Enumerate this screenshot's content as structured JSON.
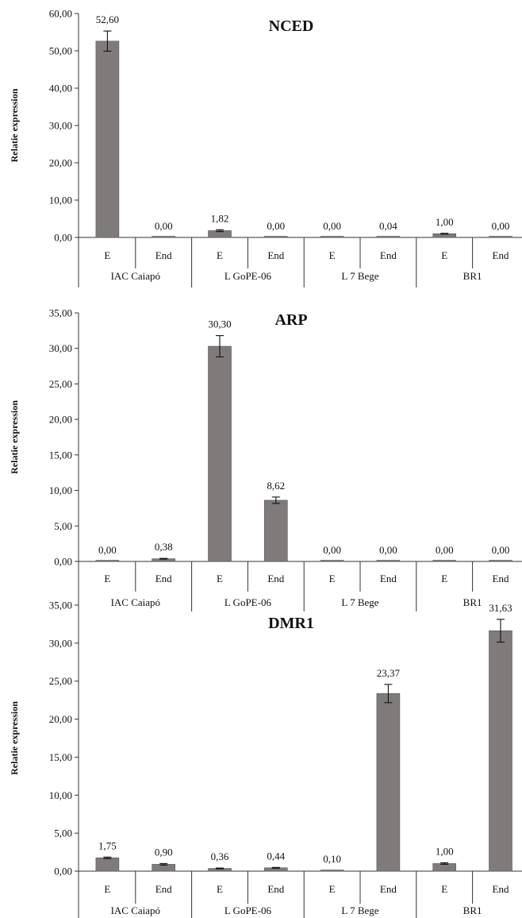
{
  "groups": [
    "IAC Caiapó",
    "L GoPE-06",
    "L 7 Bege",
    "BR1"
  ],
  "bar_color": "#7f7b7b",
  "chart_data": [
    {
      "type": "bar",
      "title": "NCED",
      "ylabel": "Relatie expression",
      "ylim": [
        0,
        60
      ],
      "yticks": [
        "0,00",
        "10,00",
        "20,00",
        "30,00",
        "40,00",
        "50,00",
        "60,00"
      ],
      "categories": [
        "E",
        "End",
        "E",
        "End",
        "E",
        "End",
        "E",
        "End"
      ],
      "groups": [
        "IAC Caiapó",
        "L GoPE-06",
        "L 7 Bege",
        "BR1"
      ],
      "values": [
        52.6,
        0.0,
        1.82,
        0.0,
        0.0,
        0.04,
        1.0,
        0.0
      ],
      "errors": [
        2.7,
        0.0,
        0.25,
        0.0,
        0.0,
        0.0,
        0.1,
        0.0
      ],
      "labels": [
        "52,60",
        "0,00",
        "1,82",
        "0,00",
        "0,00",
        "0,04",
        "1,00",
        "0,00"
      ],
      "grid": false,
      "legend": "none"
    },
    {
      "type": "bar",
      "title": "ARP",
      "ylabel": "Relatie expression",
      "ylim": [
        0,
        35
      ],
      "yticks": [
        "0,00",
        "5,00",
        "10,00",
        "15,00",
        "20,00",
        "25,00",
        "30,00",
        "35,00"
      ],
      "categories": [
        "E",
        "End",
        "E",
        "End",
        "E",
        "End",
        "E",
        "End"
      ],
      "groups": [
        "IAC Caiapó",
        "L GoPE-06",
        "L 7 Bege",
        "BR1"
      ],
      "values": [
        0.0,
        0.38,
        30.3,
        8.62,
        0.0,
        0.0,
        0.0,
        0.0
      ],
      "errors": [
        0.0,
        0.05,
        1.5,
        0.45,
        0.0,
        0.0,
        0.0,
        0.0
      ],
      "labels": [
        "0,00",
        "0,38",
        "30,30",
        "8,62",
        "0,00",
        "0,00",
        "0,00",
        "0,00"
      ],
      "grid": false,
      "legend": "none"
    },
    {
      "type": "bar",
      "title": "DMR1",
      "ylabel": "Relatie expression",
      "ylim": [
        0,
        35
      ],
      "yticks": [
        "0,00",
        "5,00",
        "10,00",
        "15,00",
        "20,00",
        "25,00",
        "30,00",
        "35,00"
      ],
      "categories": [
        "E",
        "End",
        "E",
        "End",
        "E",
        "End",
        "E",
        "End"
      ],
      "groups": [
        "IAC Caiapó",
        "L GoPE-06",
        "L 7 Bege",
        "BR1"
      ],
      "values": [
        1.75,
        0.9,
        0.36,
        0.44,
        0.1,
        23.37,
        1.0,
        31.63
      ],
      "errors": [
        0.1,
        0.1,
        0.05,
        0.05,
        0.0,
        1.2,
        0.1,
        1.5
      ],
      "labels": [
        "1,75",
        "0,90",
        "0,36",
        "0,44",
        "0,10",
        "23,37",
        "1,00",
        "31,63"
      ],
      "grid": false,
      "legend": "none"
    }
  ]
}
